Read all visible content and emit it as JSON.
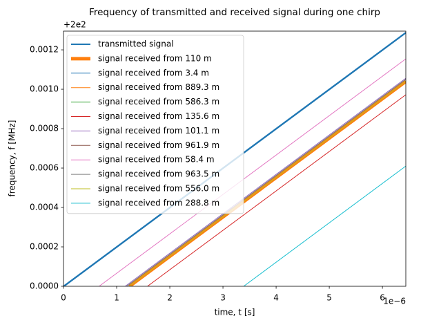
{
  "chart_data": {
    "type": "line",
    "title": "Frequency of transmitted and received signal during one chirp",
    "x_label": "time, t [s]",
    "y_label": "frequency, f [MHz]",
    "x_offset_label": "1e−6",
    "y_offset_label": "+2e2",
    "xlim": [
      0,
      6.44
    ],
    "ylim": [
      0,
      0.001295
    ],
    "xticks": [
      0,
      1,
      2,
      3,
      4,
      5,
      6
    ],
    "yticks": [
      {
        "value": 0,
        "label": "0.0000"
      },
      {
        "value": 0.0002,
        "label": "0.0002"
      },
      {
        "value": 0.0004,
        "label": "0.0004"
      },
      {
        "value": 0.0006,
        "label": "0.0006"
      },
      {
        "value": 0.0008,
        "label": "0.0008"
      },
      {
        "value": 0.001,
        "label": "0.0010"
      },
      {
        "value": 0.0012,
        "label": "0.0012"
      }
    ],
    "legend": "upper left",
    "series": [
      {
        "name": "transmitted signal",
        "color": "#1f77b4",
        "linewidth": 2,
        "x": [
          0,
          6.44
        ],
        "values": [
          0,
          0.001288
        ]
      },
      {
        "name": "signal received from 110 m",
        "color": "#ff7f0e",
        "linewidth": 5,
        "x": [
          1.24,
          6.44
        ],
        "values": [
          0,
          0.00104
        ]
      },
      {
        "name": "signal received from 3.4 m",
        "color": "#1f77b4",
        "linewidth": 1,
        "x": [
          0.02,
          6.44
        ],
        "values": [
          0,
          0.001284
        ]
      },
      {
        "name": "signal received from 889.3 m",
        "color": "#ff7f0e",
        "linewidth": 1,
        "x": [
          1.24,
          6.44
        ],
        "values": [
          0,
          0.00104
        ]
      },
      {
        "name": "signal received from 586.3 m",
        "color": "#2ca02c",
        "linewidth": 1,
        "x": [
          1.19,
          6.44
        ],
        "values": [
          0,
          0.00105
        ]
      },
      {
        "name": "signal received from 135.6 m",
        "color": "#d62728",
        "linewidth": 1,
        "x": [
          1.58,
          6.44
        ],
        "values": [
          0,
          0.000972
        ]
      },
      {
        "name": "signal received from 101.1 m",
        "color": "#9467bd",
        "linewidth": 1,
        "x": [
          1.16,
          6.44
        ],
        "values": [
          0,
          0.001056
        ]
      },
      {
        "name": "signal received from 961.9 m",
        "color": "#8c564b",
        "linewidth": 1,
        "x": [
          1.19,
          6.44
        ],
        "values": [
          0,
          0.00105
        ]
      },
      {
        "name": "signal received from 58.4 m",
        "color": "#e377c2",
        "linewidth": 1,
        "x": [
          0.67,
          6.44
        ],
        "values": [
          0,
          0.001154
        ]
      },
      {
        "name": "signal received from 963.5 m",
        "color": "#7f7f7f",
        "linewidth": 1,
        "x": [
          1.19,
          6.44
        ],
        "values": [
          0,
          0.00105
        ]
      },
      {
        "name": "signal received from 556.0 m",
        "color": "#bcbd22",
        "linewidth": 1,
        "x": [
          1.24,
          6.44
        ],
        "values": [
          0,
          0.00104
        ]
      },
      {
        "name": "signal received from 288.8 m",
        "color": "#17becf",
        "linewidth": 1,
        "x": [
          3.39,
          6.44
        ],
        "values": [
          0,
          0.00061
        ]
      }
    ]
  }
}
